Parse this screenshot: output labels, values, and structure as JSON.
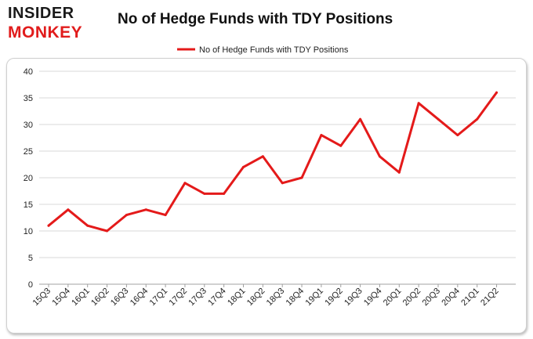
{
  "logo": {
    "line1": "INSIDER",
    "line2": "MONKEY"
  },
  "colors": {
    "series": "#e41a1a",
    "grid": "#d9d9d9",
    "logo_red": "#e11c1c"
  },
  "chart_data": {
    "type": "line",
    "title": "No of Hedge Funds with TDY Positions",
    "xlabel": "",
    "ylabel": "",
    "ylim": [
      0,
      40
    ],
    "yticks": [
      0,
      5,
      10,
      15,
      20,
      25,
      30,
      35,
      40
    ],
    "grid": "horizontal",
    "legend_position": "top-center",
    "categories": [
      "15Q3",
      "15Q4",
      "16Q1",
      "16Q2",
      "16Q3",
      "16Q4",
      "17Q1",
      "17Q2",
      "17Q3",
      "17Q4",
      "18Q1",
      "18Q2",
      "18Q3",
      "18Q4",
      "19Q1",
      "19Q2",
      "19Q3",
      "19Q4",
      "20Q1",
      "20Q2",
      "20Q3",
      "20Q4",
      "21Q1",
      "21Q2"
    ],
    "series": [
      {
        "name": "No of Hedge Funds with TDY Positions",
        "values": [
          11,
          14,
          11,
          10,
          13,
          14,
          13,
          19,
          17,
          17,
          22,
          24,
          19,
          20,
          28,
          26,
          31,
          24,
          21,
          34,
          31,
          28,
          31,
          36
        ]
      }
    ]
  }
}
